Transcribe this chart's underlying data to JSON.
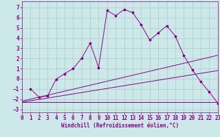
{
  "xlabel": "Windchill (Refroidissement éolien,°C)",
  "background_color": "#cce8e8",
  "grid_color": "#aacccc",
  "line_color": "#880088",
  "xlim": [
    0,
    23
  ],
  "ylim": [
    -3.3,
    7.6
  ],
  "yticks": [
    -3,
    -2,
    -1,
    0,
    1,
    2,
    3,
    4,
    5,
    6,
    7
  ],
  "xticks": [
    0,
    1,
    2,
    3,
    4,
    5,
    6,
    7,
    8,
    9,
    10,
    11,
    12,
    13,
    14,
    15,
    16,
    17,
    18,
    19,
    20,
    21,
    22,
    23
  ],
  "series": [
    {
      "x": [
        1,
        2,
        3,
        4,
        5,
        6,
        7,
        8,
        9,
        10,
        11,
        12,
        13,
        14,
        15,
        16,
        17,
        18,
        19,
        20,
        21,
        22,
        23
      ],
      "y": [
        -1.0,
        -1.8,
        -1.7,
        -0.05,
        0.5,
        1.0,
        2.0,
        3.5,
        1.1,
        6.7,
        6.2,
        6.8,
        6.5,
        5.3,
        3.8,
        4.5,
        5.2,
        4.2,
        2.3,
        0.9,
        -0.3,
        -1.3,
        -2.4
      ],
      "marker": true
    },
    {
      "x": [
        0,
        23
      ],
      "y": [
        -2.2,
        2.3
      ],
      "marker": false
    },
    {
      "x": [
        0,
        23
      ],
      "y": [
        -2.3,
        -2.3
      ],
      "marker": false
    },
    {
      "x": [
        0,
        23
      ],
      "y": [
        -2.3,
        0.8
      ],
      "marker": false
    }
  ],
  "xlabel_fontsize": 5.5,
  "tick_fontsize": 5.5,
  "linewidth": 0.7,
  "markersize": 2.5
}
